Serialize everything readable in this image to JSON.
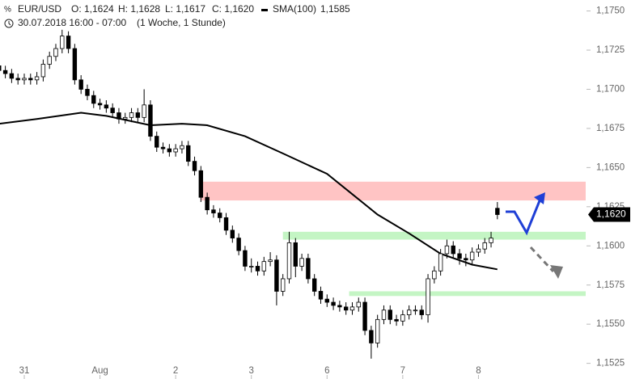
{
  "chart_data": {
    "type": "candlestick",
    "header": {
      "symbol": "EUR/USD",
      "o": "O: 1,1624",
      "h": "H: 1,1628",
      "l": "L: 1,1617",
      "c": "C: 1,1620",
      "sma_name": "SMA(100)",
      "sma_value": "1,1585",
      "date": "30.07.2018 16:00 - 07:00",
      "period": "(1 Woche, 1 Stunde)"
    },
    "last_price_label": "1,1620",
    "xlim": [
      0,
      93
    ],
    "xticks": [
      {
        "value": 4,
        "label": "31"
      },
      {
        "value": 16,
        "label": "Aug"
      },
      {
        "value": 28,
        "label": "2"
      },
      {
        "value": 40,
        "label": "3"
      },
      {
        "value": 52,
        "label": "6"
      },
      {
        "value": 64,
        "label": "7"
      },
      {
        "value": 76,
        "label": "8"
      }
    ],
    "ylim": [
      1.1515,
      1.1757
    ],
    "yticks": [
      {
        "value": 1.1525,
        "label": "1,1525"
      },
      {
        "value": 1.155,
        "label": "1,1550"
      },
      {
        "value": 1.1575,
        "label": "1,1575"
      },
      {
        "value": 1.16,
        "label": "1,1600"
      },
      {
        "value": 1.1625,
        "label": "1,1625"
      },
      {
        "value": 1.165,
        "label": "1,1650"
      },
      {
        "value": 1.1675,
        "label": "1,1675"
      },
      {
        "value": 1.17,
        "label": "1,1700"
      },
      {
        "value": 1.1725,
        "label": "1,1725"
      },
      {
        "value": 1.175,
        "label": "1,1750"
      }
    ],
    "open": [
      1.1715,
      1.1712,
      1.171,
      1.1707,
      1.1706,
      1.1707,
      1.1706,
      1.1708,
      1.1716,
      1.1721,
      1.1726,
      1.1734,
      1.1726,
      1.1706,
      1.17,
      1.1696,
      1.1691,
      1.169,
      1.1688,
      1.1685,
      1.1681,
      1.1682,
      1.1685,
      1.1682,
      1.169,
      1.167,
      1.1663,
      1.1662,
      1.166,
      1.1662,
      1.1664,
      1.1654,
      1.1648,
      1.1631,
      1.1623,
      1.1621,
      1.1618,
      1.161,
      1.1605,
      1.1597,
      1.1587,
      1.1587,
      1.1584,
      1.159,
      1.1591,
      1.1571,
      1.1579,
      1.1602,
      1.1587,
      1.1592,
      1.1579,
      1.1571,
      1.1566,
      1.1564,
      1.1562,
      1.1561,
      1.1559,
      1.1561,
      1.1564,
      1.1546,
      1.1538,
      1.1553,
      1.1559,
      1.1553,
      1.1552,
      1.1556,
      1.1559,
      1.1559,
      1.1556,
      1.1579,
      1.1584,
      1.1595,
      1.16,
      1.1595,
      1.1592,
      1.1591,
      1.1596,
      1.1598,
      1.1602,
      1.1624
    ],
    "high": [
      1.1718,
      1.1715,
      1.1713,
      1.171,
      1.171,
      1.171,
      1.1711,
      1.1719,
      1.1724,
      1.1729,
      1.1738,
      1.1737,
      1.1729,
      1.1709,
      1.1703,
      1.1699,
      1.1694,
      1.1693,
      1.1691,
      1.1688,
      1.1685,
      1.1688,
      1.1688,
      1.17,
      1.1693,
      1.1673,
      1.1666,
      1.1665,
      1.1665,
      1.1667,
      1.1667,
      1.1657,
      1.1651,
      1.1634,
      1.1626,
      1.1624,
      1.1621,
      1.1613,
      1.1608,
      1.16,
      1.1592,
      1.159,
      1.1593,
      1.1596,
      1.1594,
      1.1582,
      1.1609,
      1.1605,
      1.1595,
      1.1595,
      1.1582,
      1.1574,
      1.1569,
      1.1567,
      1.1565,
      1.1564,
      1.1564,
      1.1567,
      1.1567,
      1.1549,
      1.1556,
      1.1562,
      1.1562,
      1.1556,
      1.1559,
      1.1562,
      1.1562,
      1.1562,
      1.1582,
      1.1587,
      1.1598,
      1.1604,
      1.1603,
      1.1598,
      1.1595,
      1.1599,
      1.1601,
      1.1605,
      1.1609,
      1.1628
    ],
    "low": [
      1.1709,
      1.1707,
      1.1704,
      1.1703,
      1.1703,
      1.1703,
      1.1703,
      1.1705,
      1.1713,
      1.1718,
      1.1723,
      1.1723,
      1.1703,
      1.1697,
      1.1693,
      1.1688,
      1.1687,
      1.1685,
      1.1682,
      1.1678,
      1.1678,
      1.1679,
      1.1679,
      1.1679,
      1.1667,
      1.166,
      1.1659,
      1.1657,
      1.1657,
      1.1659,
      1.1651,
      1.1645,
      1.1628,
      1.162,
      1.1618,
      1.1615,
      1.1607,
      1.1602,
      1.1594,
      1.1584,
      1.1583,
      1.1581,
      1.1581,
      1.1587,
      1.1562,
      1.1568,
      1.1576,
      1.158,
      1.1584,
      1.1576,
      1.1568,
      1.1563,
      1.1561,
      1.1559,
      1.1558,
      1.1556,
      1.1556,
      1.1558,
      1.1543,
      1.1528,
      1.1535,
      1.155,
      1.155,
      1.1549,
      1.1549,
      1.1553,
      1.1556,
      1.1553,
      1.1551,
      1.1576,
      1.1581,
      1.1592,
      1.1592,
      1.1588,
      1.1587,
      1.1588,
      1.1593,
      1.1595,
      1.1599,
      1.1617
    ],
    "close": [
      1.1712,
      1.171,
      1.1707,
      1.1706,
      1.1707,
      1.1706,
      1.1708,
      1.1716,
      1.1721,
      1.1726,
      1.1734,
      1.1726,
      1.1706,
      1.17,
      1.1696,
      1.1691,
      1.169,
      1.1688,
      1.1685,
      1.1681,
      1.1682,
      1.1685,
      1.1682,
      1.169,
      1.167,
      1.1663,
      1.1662,
      1.166,
      1.1662,
      1.1664,
      1.1654,
      1.1648,
      1.1631,
      1.1623,
      1.1621,
      1.1618,
      1.161,
      1.1605,
      1.1597,
      1.1587,
      1.1587,
      1.1584,
      1.159,
      1.1591,
      1.1571,
      1.1579,
      1.1602,
      1.1587,
      1.1592,
      1.1579,
      1.1571,
      1.1566,
      1.1564,
      1.1562,
      1.1561,
      1.1559,
      1.1561,
      1.1564,
      1.1546,
      1.1538,
      1.1553,
      1.1559,
      1.1553,
      1.1552,
      1.1556,
      1.1559,
      1.1559,
      1.1556,
      1.1579,
      1.1584,
      1.1595,
      1.16,
      1.1595,
      1.1592,
      1.1591,
      1.1596,
      1.1598,
      1.1602,
      1.1605,
      1.162
    ],
    "sma": {
      "name": "SMA(100)",
      "color": "#000000",
      "x": [
        0,
        6,
        13,
        17,
        24,
        29,
        33,
        39,
        45,
        52,
        56,
        60,
        65,
        70,
        75,
        79
      ],
      "values": [
        1.1678,
        1.1681,
        1.1685,
        1.1683,
        1.1677,
        1.1678,
        1.1677,
        1.167,
        1.1659,
        1.1646,
        1.1633,
        1.162,
        1.1608,
        1.1595,
        1.1588,
        1.1585
      ]
    },
    "zones": [
      {
        "from": 1.1629,
        "to": 1.1641,
        "start": 32,
        "color": "#ffc4c4"
      },
      {
        "from": 1.1604,
        "to": 1.1609,
        "start": 45,
        "color": "#c4f5c4"
      },
      {
        "from": 1.1568,
        "to": 1.1571,
        "start": 55.5,
        "color": "#c4f5c4"
      }
    ]
  }
}
